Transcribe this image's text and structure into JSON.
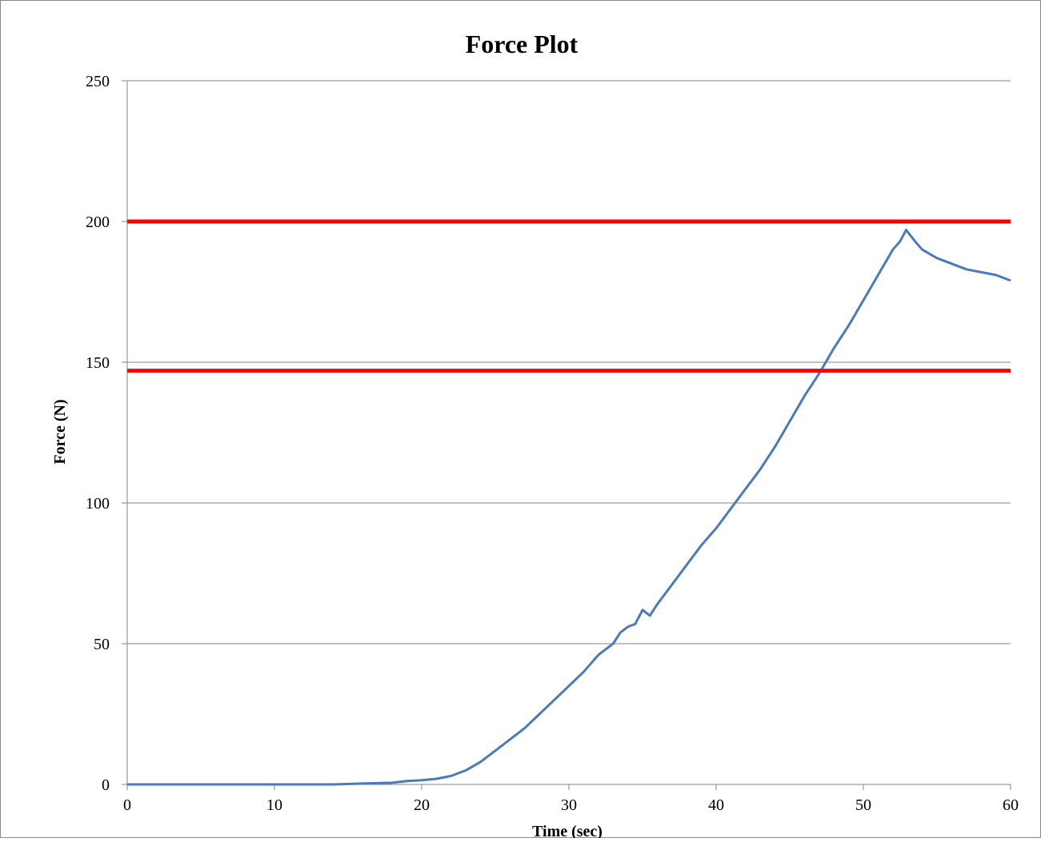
{
  "chart_data": {
    "type": "line",
    "title": "Force Plot",
    "xlabel": "Time (sec)",
    "ylabel": "Force (N)",
    "xlim": [
      0,
      60
    ],
    "ylim": [
      0,
      250
    ],
    "x_ticks": [
      "0",
      "10",
      "20",
      "30",
      "40",
      "50",
      "60"
    ],
    "y_ticks": [
      "0",
      "50",
      "100",
      "150",
      "200",
      "250"
    ],
    "grid": "horizontal",
    "legend": "none",
    "series": [
      {
        "color": "#4a7ab9",
        "x": [
          0,
          2,
          4,
          6,
          8,
          10,
          12,
          14,
          16,
          18,
          19,
          20,
          21,
          22,
          23,
          24,
          25,
          26,
          27,
          28,
          29,
          30,
          31,
          32,
          33,
          33.5,
          34,
          34.5,
          35,
          35.5,
          36,
          37,
          38,
          39,
          40,
          41,
          42,
          43,
          44,
          45,
          46,
          47,
          48,
          49,
          50,
          51,
          52,
          52.5,
          52.9,
          53.5,
          54,
          55,
          56,
          57,
          58,
          59,
          60
        ],
        "y": [
          0,
          0,
          0,
          0,
          0,
          0,
          0,
          0,
          0.3,
          0.6,
          1.2,
          1.5,
          2,
          3,
          5,
          8,
          12,
          16,
          20,
          25,
          30,
          35,
          40,
          46,
          50,
          54,
          56,
          57,
          62,
          60,
          64,
          71,
          78,
          85,
          91,
          98,
          105,
          112,
          120,
          129,
          138,
          146,
          155,
          163,
          172,
          181,
          190,
          193,
          197,
          193,
          190,
          187,
          185,
          183,
          182,
          181,
          179
        ]
      },
      {
        "color": "#ff0000",
        "x": [
          0,
          60
        ],
        "y": [
          200,
          200
        ]
      },
      {
        "color": "#ff0000",
        "x": [
          0,
          60
        ],
        "y": [
          147,
          147
        ]
      }
    ]
  }
}
